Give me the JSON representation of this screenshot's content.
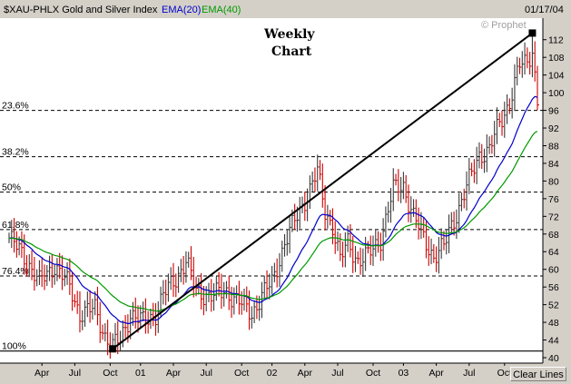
{
  "header": {
    "symbol_label": "$XAU-PHLX Gold and Silver Index",
    "ema20_label": "EMA(20)",
    "ema40_label": "EMA(40)",
    "date": "01/17/04",
    "copyright": "© Prophet"
  },
  "buttons": {
    "clear_lines": "Clear Lines"
  },
  "colors": {
    "plot_bg": "#ffffff",
    "up_bar": "#3a3a3a",
    "down_bar": "#d00000",
    "ema20": "#0000cc",
    "ema40": "#009900",
    "trendline": "#000000",
    "fib_line": "#000000",
    "symbol_text": "#000000",
    "ema20_text": "#0000cc",
    "ema40_text": "#009900"
  },
  "chart_data": {
    "type": "line",
    "title": "Weekly Chart",
    "title_lines": [
      "Weekly",
      "Chart"
    ],
    "xlabel": "",
    "ylabel": "",
    "ylim": [
      40,
      114
    ],
    "y_ticks": [
      "112",
      "108",
      "104",
      "100",
      "96",
      "92",
      "88",
      "84",
      "80",
      "76",
      "72",
      "68",
      "64",
      "60",
      "56",
      "52",
      "48",
      "44",
      "40"
    ],
    "y_tick_values": [
      112,
      108,
      104,
      100,
      96,
      92,
      88,
      84,
      80,
      76,
      72,
      68,
      64,
      60,
      56,
      52,
      48,
      44,
      40
    ],
    "x_tick_labels": [
      "Apr",
      "Jul",
      "Oct",
      "01",
      "Apr",
      "Jul",
      "Oct",
      "02",
      "Apr",
      "Jul",
      "Oct",
      "03",
      "Apr",
      "Jul",
      "Oct"
    ],
    "x_tick_weeks": [
      13,
      26,
      40,
      52,
      65,
      78,
      92,
      104,
      117,
      130,
      144,
      156,
      169,
      182,
      196
    ],
    "grid": false,
    "fibonacci_levels": [
      {
        "label": "23.6%",
        "value": 96.0
      },
      {
        "label": "38.2%",
        "value": 85.5
      },
      {
        "label": "50%",
        "value": 77.5
      },
      {
        "label": "61.8%",
        "value": 69.0
      },
      {
        "label": "76.4%",
        "value": 58.5
      },
      {
        "label": "100%",
        "value": 41.5
      }
    ],
    "trendline": {
      "from": {
        "week": 41,
        "value": 42
      },
      "to": {
        "week": 207,
        "value": 113.5
      }
    },
    "weeks": 210,
    "close_keypoints": [
      [
        0,
        67
      ],
      [
        6,
        63
      ],
      [
        12,
        57
      ],
      [
        18,
        61
      ],
      [
        24,
        56
      ],
      [
        28,
        50
      ],
      [
        34,
        51
      ],
      [
        38,
        45
      ],
      [
        41,
        42.5
      ],
      [
        44,
        44
      ],
      [
        48,
        50
      ],
      [
        53,
        48
      ],
      [
        58,
        50
      ],
      [
        61,
        54
      ],
      [
        66,
        58
      ],
      [
        70,
        62
      ],
      [
        74,
        55
      ],
      [
        80,
        54
      ],
      [
        86,
        55
      ],
      [
        92,
        52
      ],
      [
        96,
        50
      ],
      [
        100,
        54
      ],
      [
        104,
        57
      ],
      [
        109,
        66
      ],
      [
        114,
        72
      ],
      [
        118,
        77
      ],
      [
        122,
        82
      ],
      [
        125,
        73
      ],
      [
        128,
        70
      ],
      [
        131,
        62
      ],
      [
        134,
        66
      ],
      [
        138,
        62
      ],
      [
        142,
        63
      ],
      [
        147,
        67
      ],
      [
        152,
        78
      ],
      [
        156,
        79
      ],
      [
        160,
        72
      ],
      [
        164,
        67
      ],
      [
        168,
        63
      ],
      [
        172,
        65
      ],
      [
        175,
        70
      ],
      [
        178,
        74
      ],
      [
        182,
        80
      ],
      [
        186,
        86
      ],
      [
        190,
        87
      ],
      [
        194,
        93
      ],
      [
        198,
        98
      ],
      [
        202,
        106
      ],
      [
        205,
        107
      ],
      [
        207,
        110
      ],
      [
        209,
        98
      ]
    ],
    "series": [
      {
        "name": "$XAU-PHLX Gold and Silver Index",
        "kind": "hl-bars"
      },
      {
        "name": "EMA(20)",
        "kind": "line",
        "period": 20
      },
      {
        "name": "EMA(40)",
        "kind": "line",
        "period": 40
      }
    ]
  }
}
